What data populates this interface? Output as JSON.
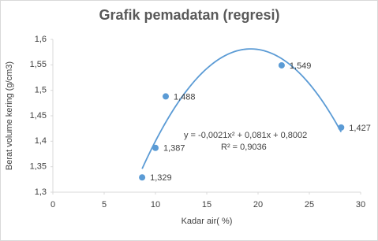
{
  "chart_data": {
    "type": "scatter",
    "title": "Grafik pemadatan (regresi)",
    "x_label": "Kadar air( %)",
    "y_label": "Berat volume kering (g/cm3)",
    "series": [
      {
        "name": "Berat volume kering",
        "color": "#5b9bd5",
        "x": [
          8.7,
          10.0,
          11.0,
          22.3,
          28.1
        ],
        "values": [
          1.329,
          1.387,
          1.488,
          1.549,
          1.427
        ],
        "value_labels": [
          "1,329",
          "1,387",
          "1,488",
          "1,549",
          "1,427"
        ]
      }
    ],
    "trendline": {
      "type": "polynomial",
      "coefficients": [
        -0.0021,
        0.081,
        0.8002
      ],
      "color": "#5b9bd5",
      "equation": "y = -0,0021x² + 0,081x + 0,8002",
      "r_squared": "R² = 0,9036"
    },
    "xlim": [
      0,
      30
    ],
    "xticks": [
      0,
      5,
      10,
      15,
      20,
      25,
      30
    ],
    "ylim": [
      1.3,
      1.6
    ],
    "yticks": [
      {
        "value": 1.3,
        "label": "1,3"
      },
      {
        "value": 1.35,
        "label": "1,35"
      },
      {
        "value": 1.4,
        "label": "1,4"
      },
      {
        "value": 1.45,
        "label": "1,45"
      },
      {
        "value": 1.5,
        "label": "1,5"
      },
      {
        "value": 1.55,
        "label": "1,55"
      },
      {
        "value": 1.6,
        "label": "1,6"
      }
    ],
    "grid": false
  }
}
